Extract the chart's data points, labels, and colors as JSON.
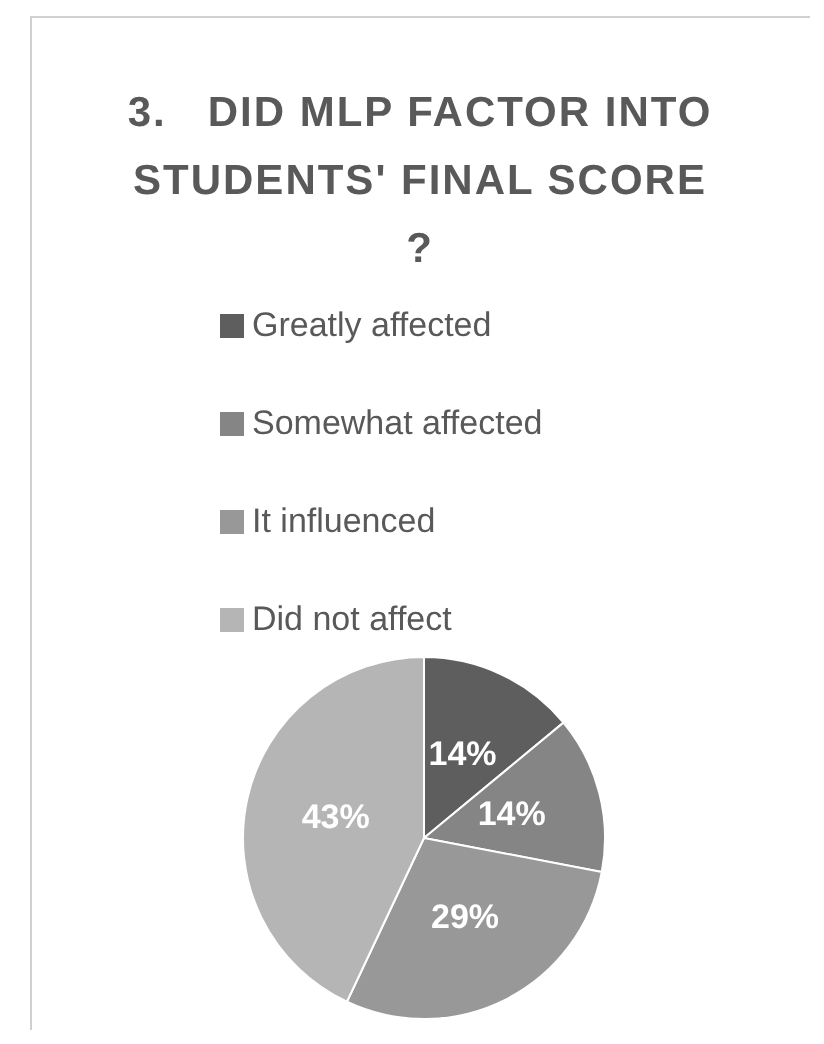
{
  "chart_data": {
    "type": "pie",
    "title": "3.   DID MLP FACTOR INTO STUDENTS' FINAL SCORE ?",
    "categories": [
      "Greatly affected",
      "Somewhat affected",
      "It influenced",
      "Did not affect"
    ],
    "values": [
      14,
      14,
      29,
      43
    ],
    "value_labels": [
      "14%",
      "14%",
      "29%",
      "43%"
    ],
    "colors": [
      "#5e5e5e",
      "#858585",
      "#989898",
      "#b5b5b5"
    ],
    "legend": "top"
  }
}
